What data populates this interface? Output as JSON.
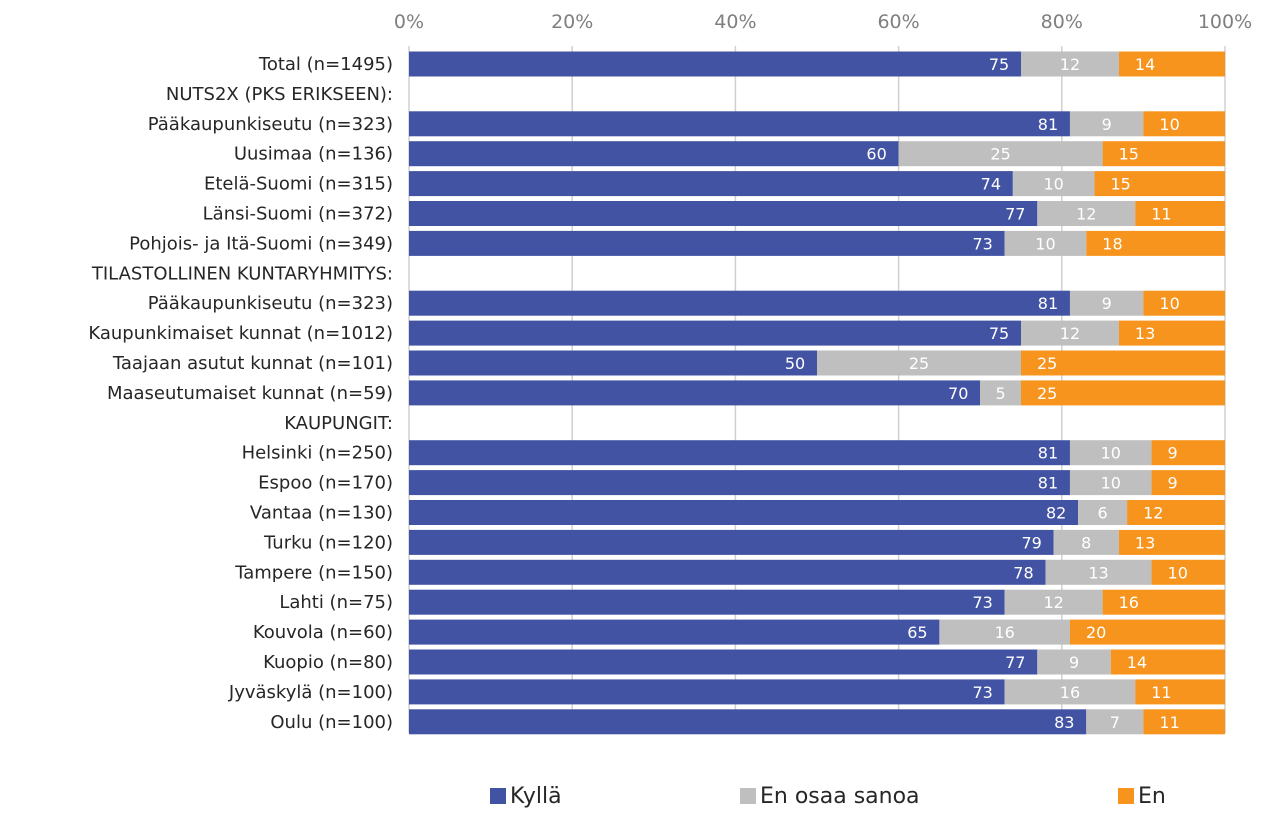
{
  "chart_data": {
    "type": "bar",
    "orientation": "horizontal",
    "stacked": "percent",
    "categories": [
      "Total (n=1495)",
      "NUTS2X (PKS ERIKSEEN):",
      "Pääkaupunkiseutu (n=323)",
      "Uusimaa (n=136)",
      "Etelä-Suomi (n=315)",
      "Länsi-Suomi (n=372)",
      "Pohjois- ja Itä-Suomi (n=349)",
      "TILASTOLLINEN KUNTARYHMITYS:",
      "Pääkaupunkiseutu (n=323)",
      "Kaupunkimaiset kunnat (n=1012)",
      "Taajaan asutut kunnat (n=101)",
      "Maaseutumaiset kunnat (n=59)",
      "KAUPUNGIT:",
      "Helsinki (n=250)",
      "Espoo (n=170)",
      "Vantaa (n=130)",
      "Turku (n=120)",
      "Tampere (n=150)",
      "Lahti (n=75)",
      "Kouvola (n=60)",
      "Kuopio (n=80)",
      "Jyväskylä (n=100)",
      "Oulu (n=100)"
    ],
    "series": [
      {
        "name": "Kyllä",
        "color": "#4353a4",
        "label_color": "#ffffff",
        "values": [
          75,
          null,
          81,
          60,
          74,
          77,
          73,
          null,
          81,
          75,
          50,
          70,
          null,
          81,
          81,
          82,
          79,
          78,
          73,
          65,
          77,
          73,
          83
        ]
      },
      {
        "name": "En osaa sanoa",
        "color": "#bfbfbf",
        "label_color": "#ffffff",
        "values": [
          12,
          null,
          9,
          25,
          10,
          12,
          10,
          null,
          9,
          12,
          25,
          5,
          null,
          10,
          10,
          6,
          8,
          13,
          12,
          16,
          9,
          16,
          7
        ]
      },
      {
        "name": "En",
        "color": "#f7941d",
        "label_color": "#ffffff",
        "values": [
          14,
          null,
          10,
          15,
          15,
          11,
          18,
          null,
          10,
          13,
          25,
          25,
          null,
          9,
          9,
          12,
          13,
          10,
          16,
          20,
          14,
          11,
          11
        ]
      }
    ],
    "xlim": [
      0,
      100
    ],
    "x_ticks": [
      "0%",
      "20%",
      "40%",
      "60%",
      "80%",
      "100%"
    ],
    "x_axis_position": "top",
    "grid": true,
    "legend_position": "bottom",
    "title": "",
    "xlabel": "",
    "ylabel": ""
  }
}
